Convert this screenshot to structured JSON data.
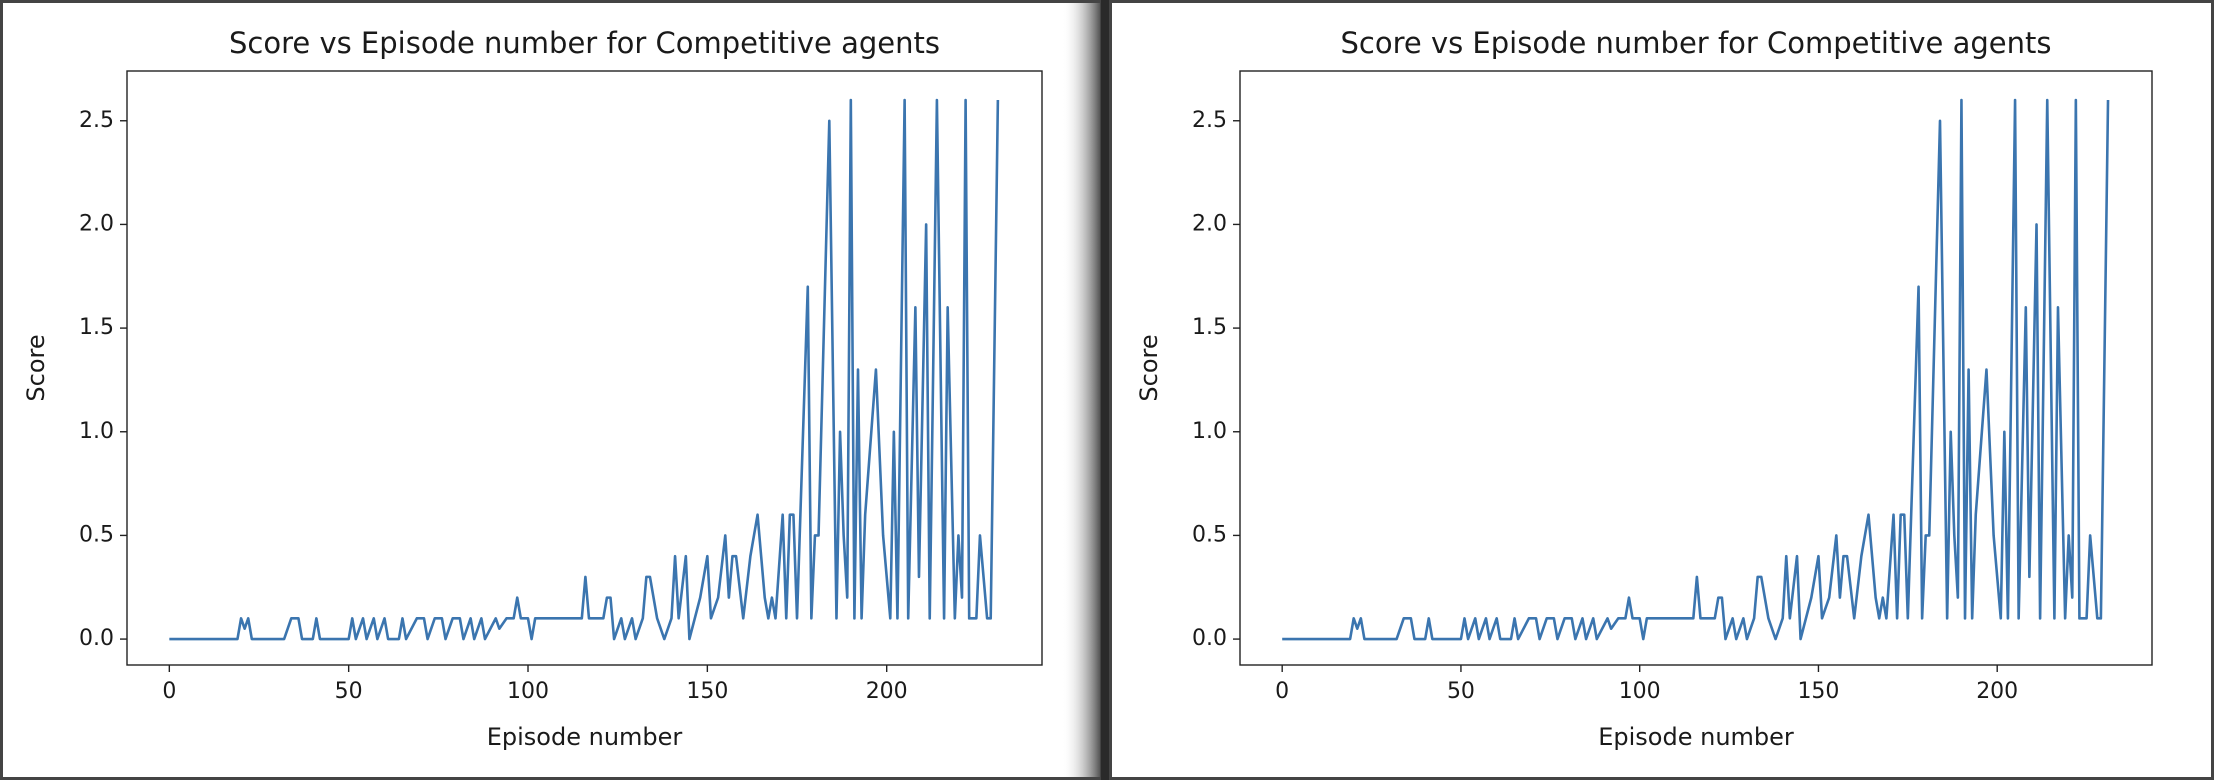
{
  "chart_data": [
    {
      "type": "line",
      "title": "Score vs Episode number for Competitive agents",
      "xlabel": "Episode number",
      "ylabel": "Score",
      "xlim": [
        -11.8,
        243.3
      ],
      "ylim": [
        -0.125,
        2.74
      ],
      "xticks": [
        0,
        50,
        100,
        150,
        200
      ],
      "yticks": [
        {
          "value": 0,
          "label": "0.0"
        },
        0.5,
        {
          "value": 1,
          "label": "1.0"
        },
        1.5,
        {
          "value": 2,
          "label": "2.0"
        },
        2.5
      ],
      "color": "#3b75af",
      "x": [
        0,
        19,
        20,
        21,
        22,
        23,
        32,
        34,
        36,
        37,
        40,
        41,
        42,
        50,
        51,
        52,
        54,
        55,
        57,
        58,
        60,
        61,
        64,
        65,
        66,
        69,
        71,
        72,
        74,
        76,
        77,
        79,
        81,
        82,
        84,
        85,
        87,
        88,
        91,
        92,
        94,
        96,
        97,
        98,
        100,
        101,
        102,
        110,
        115,
        116,
        117,
        121,
        122,
        123,
        124,
        126,
        127,
        129,
        130,
        132,
        133,
        134,
        136,
        138,
        140,
        141,
        142,
        144,
        145,
        148,
        150,
        151,
        153,
        155,
        156,
        157,
        158,
        160,
        162,
        164,
        166,
        167,
        168,
        169,
        171,
        172,
        173,
        174,
        175,
        178,
        179,
        180,
        181,
        184,
        186,
        187,
        188,
        189,
        190,
        191,
        192,
        193,
        194,
        197,
        199,
        201,
        202,
        203,
        205,
        206,
        208,
        209,
        211,
        212,
        214,
        216,
        217,
        219,
        220,
        221,
        222,
        223,
        225,
        226,
        228,
        229,
        231
      ],
      "values": [
        0,
        0,
        0.1,
        0.05,
        0.1,
        0,
        0,
        0.1,
        0.1,
        0,
        0,
        0.1,
        0,
        0,
        0.1,
        0,
        0.1,
        0,
        0.1,
        0,
        0.1,
        0,
        0,
        0.1,
        0,
        0.1,
        0.1,
        0,
        0.1,
        0.1,
        0,
        0.1,
        0.1,
        0,
        0.1,
        0,
        0.1,
        0,
        0.1,
        0.05,
        0.1,
        0.1,
        0.2,
        0.1,
        0.1,
        0,
        0.1,
        0.1,
        0.1,
        0.3,
        0.1,
        0.1,
        0.2,
        0.2,
        0,
        0.1,
        0,
        0.1,
        0,
        0.1,
        0.3,
        0.3,
        0.1,
        0,
        0.1,
        0.4,
        0.1,
        0.4,
        0,
        0.2,
        0.4,
        0.1,
        0.2,
        0.5,
        0.2,
        0.4,
        0.4,
        0.1,
        0.4,
        0.6,
        0.2,
        0.1,
        0.2,
        0.1,
        0.6,
        0.1,
        0.6,
        0.6,
        0.1,
        1.7,
        0.1,
        0.5,
        0.5,
        2.5,
        0.1,
        1.0,
        0.5,
        0.2,
        2.6,
        0.1,
        1.3,
        0.1,
        0.6,
        1.3,
        0.5,
        0.1,
        1.0,
        0.1,
        2.6,
        0.1,
        1.6,
        0.3,
        2.0,
        0.1,
        2.6,
        0.1,
        1.6,
        0.1,
        0.5,
        0.2,
        2.6,
        0.1,
        0.1,
        0.5,
        0.1,
        0.1,
        2.6
      ]
    },
    {
      "type": "line",
      "title": "Score vs Episode number for Competitive agents",
      "xlabel": "Episode number",
      "ylabel": "Score",
      "xlim": [
        -11.8,
        243.3
      ],
      "ylim": [
        -0.125,
        2.74
      ],
      "xticks": [
        0,
        50,
        100,
        150,
        200
      ],
      "yticks": [
        {
          "value": 0,
          "label": "0.0"
        },
        0.5,
        {
          "value": 1,
          "label": "1.0"
        },
        1.5,
        {
          "value": 2,
          "label": "2.0"
        },
        2.5
      ],
      "color": "#3b75af",
      "x": [
        0,
        19,
        20,
        21,
        22,
        23,
        32,
        34,
        36,
        37,
        40,
        41,
        42,
        50,
        51,
        52,
        54,
        55,
        57,
        58,
        60,
        61,
        64,
        65,
        66,
        69,
        71,
        72,
        74,
        76,
        77,
        79,
        81,
        82,
        84,
        85,
        87,
        88,
        91,
        92,
        94,
        96,
        97,
        98,
        100,
        101,
        102,
        110,
        115,
        116,
        117,
        121,
        122,
        123,
        124,
        126,
        127,
        129,
        130,
        132,
        133,
        134,
        136,
        138,
        140,
        141,
        142,
        144,
        145,
        148,
        150,
        151,
        153,
        155,
        156,
        157,
        158,
        160,
        162,
        164,
        166,
        167,
        168,
        169,
        171,
        172,
        173,
        174,
        175,
        178,
        179,
        180,
        181,
        184,
        186,
        187,
        188,
        189,
        190,
        191,
        192,
        193,
        194,
        197,
        199,
        201,
        202,
        203,
        205,
        206,
        208,
        209,
        211,
        212,
        214,
        216,
        217,
        219,
        220,
        221,
        222,
        223,
        225,
        226,
        228,
        229,
        231
      ],
      "values": [
        0,
        0,
        0.1,
        0.05,
        0.1,
        0,
        0,
        0.1,
        0.1,
        0,
        0,
        0.1,
        0,
        0,
        0.1,
        0,
        0.1,
        0,
        0.1,
        0,
        0.1,
        0,
        0,
        0.1,
        0,
        0.1,
        0.1,
        0,
        0.1,
        0.1,
        0,
        0.1,
        0.1,
        0,
        0.1,
        0,
        0.1,
        0,
        0.1,
        0.05,
        0.1,
        0.1,
        0.2,
        0.1,
        0.1,
        0,
        0.1,
        0.1,
        0.1,
        0.3,
        0.1,
        0.1,
        0.2,
        0.2,
        0,
        0.1,
        0,
        0.1,
        0,
        0.1,
        0.3,
        0.3,
        0.1,
        0,
        0.1,
        0.4,
        0.1,
        0.4,
        0,
        0.2,
        0.4,
        0.1,
        0.2,
        0.5,
        0.2,
        0.4,
        0.4,
        0.1,
        0.4,
        0.6,
        0.2,
        0.1,
        0.2,
        0.1,
        0.6,
        0.1,
        0.6,
        0.6,
        0.1,
        1.7,
        0.1,
        0.5,
        0.5,
        2.5,
        0.1,
        1.0,
        0.5,
        0.2,
        2.6,
        0.1,
        1.3,
        0.1,
        0.6,
        1.3,
        0.5,
        0.1,
        1.0,
        0.1,
        2.6,
        0.1,
        1.6,
        0.3,
        2.0,
        0.1,
        2.6,
        0.1,
        1.6,
        0.1,
        0.5,
        0.2,
        2.6,
        0.1,
        0.1,
        0.5,
        0.1,
        0.1,
        2.6
      ]
    }
  ]
}
